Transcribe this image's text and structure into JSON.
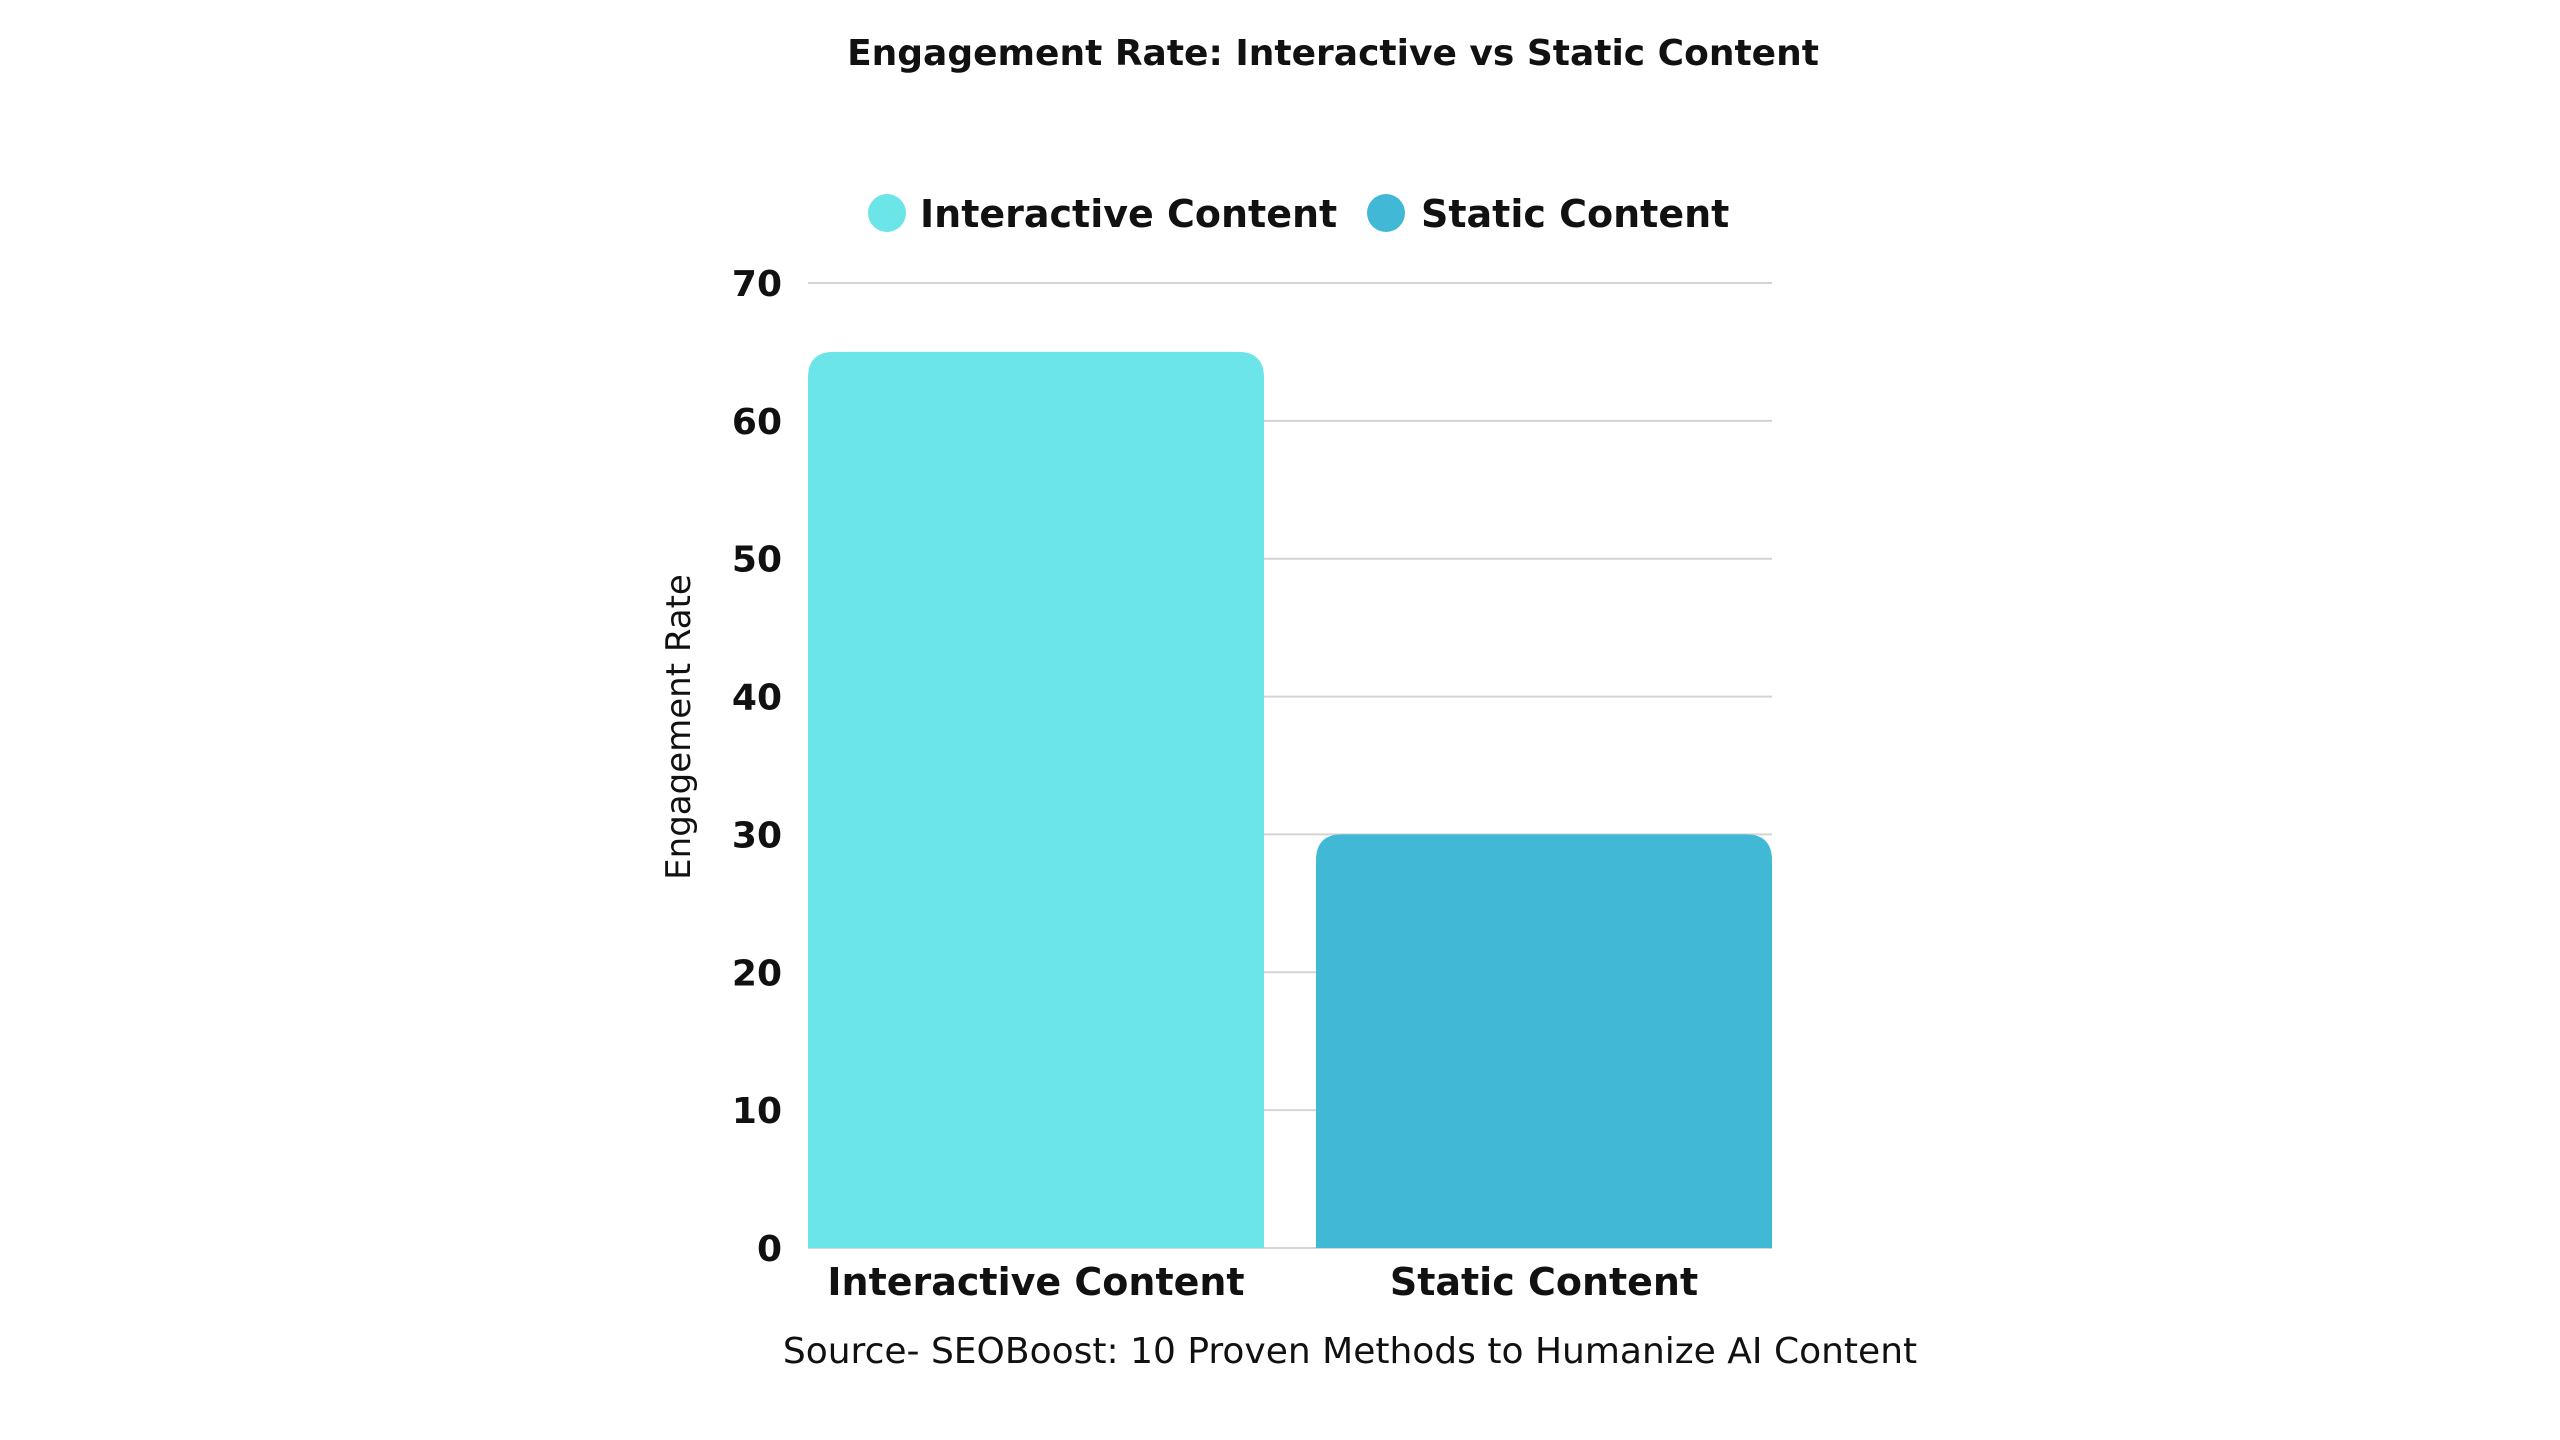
{
  "chart_data": {
    "type": "bar",
    "title": "Engagement Rate: Interactive vs Static Content",
    "xlabel": "",
    "ylabel": "Engagement Rate",
    "categories": [
      "Interactive Content",
      "Static Content"
    ],
    "values": [
      65,
      30
    ],
    "colors": [
      "#6ce5e8",
      "#41b8d5"
    ],
    "legend": [
      "Interactive Content",
      "Static Content"
    ],
    "legend_position": "top",
    "ylim": [
      0,
      70
    ],
    "yticks": [
      0,
      10,
      20,
      30,
      40,
      50,
      60,
      70
    ],
    "grid": true,
    "source": "Source- SEOBoost: 10 Proven Methods to Humanize AI Content"
  }
}
